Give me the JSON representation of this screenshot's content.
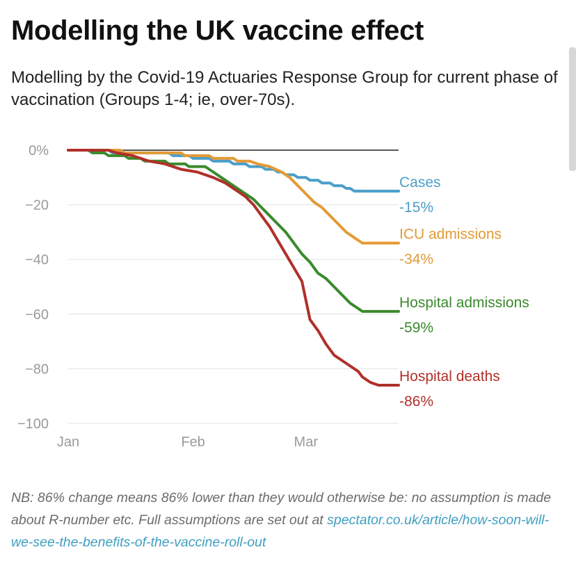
{
  "title": "Modelling the UK vaccine effect",
  "subtitle": "Modelling by the Covid-19 Actuaries Response Group for current phase of vaccination (Groups 1-4; ie, over-70s).",
  "note": {
    "text": "NB: 86% change means 86% lower than they would otherwise be: no assumption is made about R-number etc. Full assumptions are set out at ",
    "link": "spectator.co.uk/article/how-soon-will-we-see-the-benefits-of-the-vaccine-roll-out"
  },
  "chart_data": {
    "type": "line",
    "title": "Modelling the UK vaccine effect",
    "xlabel": "",
    "ylabel": "",
    "ylim": [
      -100,
      0
    ],
    "xlim": [
      "2021-01-01",
      "2021-03-24"
    ],
    "x_ticks": [
      {
        "label": "Jan",
        "date": "2021-01-01"
      },
      {
        "label": "Feb",
        "date": "2021-02-01"
      },
      {
        "label": "Mar",
        "date": "2021-03-01"
      }
    ],
    "y_ticks": [
      {
        "label": "0%",
        "value": 0
      },
      {
        "label": "−20",
        "value": -20
      },
      {
        "label": "−40",
        "value": -40
      },
      {
        "label": "−60",
        "value": -60
      },
      {
        "label": "−80",
        "value": -80
      },
      {
        "label": "−100",
        "value": -100
      }
    ],
    "grid": true,
    "legend": "right-end-labels",
    "series": [
      {
        "name": "Cases",
        "end_label": "-15%",
        "color": "#4a9fc9",
        "points": [
          [
            "2021-01-01",
            0
          ],
          [
            "2021-01-11",
            0
          ],
          [
            "2021-01-12",
            -1
          ],
          [
            "2021-01-26",
            -1
          ],
          [
            "2021-01-27",
            -2
          ],
          [
            "2021-01-31",
            -2
          ],
          [
            "2021-02-01",
            -3
          ],
          [
            "2021-02-05",
            -3
          ],
          [
            "2021-02-06",
            -4
          ],
          [
            "2021-02-10",
            -4
          ],
          [
            "2021-02-11",
            -5
          ],
          [
            "2021-02-14",
            -5
          ],
          [
            "2021-02-15",
            -6
          ],
          [
            "2021-02-18",
            -6
          ],
          [
            "2021-02-19",
            -7
          ],
          [
            "2021-02-21",
            -7
          ],
          [
            "2021-02-22",
            -8
          ],
          [
            "2021-02-23",
            -8
          ],
          [
            "2021-02-24",
            -9
          ],
          [
            "2021-02-26",
            -9
          ],
          [
            "2021-02-27",
            -10
          ],
          [
            "2021-03-01",
            -10
          ],
          [
            "2021-03-02",
            -11
          ],
          [
            "2021-03-04",
            -11
          ],
          [
            "2021-03-05",
            -12
          ],
          [
            "2021-03-07",
            -12
          ],
          [
            "2021-03-08",
            -13
          ],
          [
            "2021-03-10",
            -13
          ],
          [
            "2021-03-11",
            -14
          ],
          [
            "2021-03-12",
            -14
          ],
          [
            "2021-03-13",
            -15
          ],
          [
            "2021-03-24",
            -15
          ]
        ]
      },
      {
        "name": "ICU  admissions",
        "end_label": "-34%",
        "color": "#e39a37",
        "points": [
          [
            "2021-01-01",
            0
          ],
          [
            "2021-01-14",
            0
          ],
          [
            "2021-01-15",
            -1
          ],
          [
            "2021-01-29",
            -1
          ],
          [
            "2021-01-30",
            -2
          ],
          [
            "2021-02-05",
            -2
          ],
          [
            "2021-02-06",
            -3
          ],
          [
            "2021-02-11",
            -3
          ],
          [
            "2021-02-12",
            -4
          ],
          [
            "2021-02-15",
            -4
          ],
          [
            "2021-02-17",
            -5
          ],
          [
            "2021-02-20",
            -6
          ],
          [
            "2021-02-23",
            -8
          ],
          [
            "2021-02-25",
            -10
          ],
          [
            "2021-02-27",
            -13
          ],
          [
            "2021-03-01",
            -16
          ],
          [
            "2021-03-03",
            -19
          ],
          [
            "2021-03-05",
            -21
          ],
          [
            "2021-03-07",
            -24
          ],
          [
            "2021-03-09",
            -27
          ],
          [
            "2021-03-11",
            -30
          ],
          [
            "2021-03-13",
            -32
          ],
          [
            "2021-03-15",
            -34
          ],
          [
            "2021-03-24",
            -34
          ]
        ]
      },
      {
        "name": "Hospital admissions",
        "end_label": "-59%",
        "color": "#3a8a2c",
        "points": [
          [
            "2021-01-01",
            0
          ],
          [
            "2021-01-06",
            0
          ],
          [
            "2021-01-07",
            -1
          ],
          [
            "2021-01-10",
            -1
          ],
          [
            "2021-01-11",
            -2
          ],
          [
            "2021-01-15",
            -2
          ],
          [
            "2021-01-16",
            -3
          ],
          [
            "2021-01-19",
            -3
          ],
          [
            "2021-01-20",
            -4
          ],
          [
            "2021-01-25",
            -4
          ],
          [
            "2021-01-26",
            -5
          ],
          [
            "2021-01-30",
            -5
          ],
          [
            "2021-01-31",
            -6
          ],
          [
            "2021-02-04",
            -6
          ],
          [
            "2021-02-06",
            -8
          ],
          [
            "2021-02-08",
            -10
          ],
          [
            "2021-02-10",
            -12
          ],
          [
            "2021-02-13",
            -15
          ],
          [
            "2021-02-16",
            -18
          ],
          [
            "2021-02-18",
            -21
          ],
          [
            "2021-02-20",
            -24
          ],
          [
            "2021-02-22",
            -27
          ],
          [
            "2021-02-24",
            -30
          ],
          [
            "2021-02-26",
            -34
          ],
          [
            "2021-02-28",
            -38
          ],
          [
            "2021-03-02",
            -41
          ],
          [
            "2021-03-04",
            -45
          ],
          [
            "2021-03-06",
            -47
          ],
          [
            "2021-03-08",
            -50
          ],
          [
            "2021-03-10",
            -53
          ],
          [
            "2021-03-12",
            -56
          ],
          [
            "2021-03-14",
            -58
          ],
          [
            "2021-03-15",
            -59
          ],
          [
            "2021-03-24",
            -59
          ]
        ]
      },
      {
        "name": "Hospital deaths",
        "end_label": "-86%",
        "color": "#b0302a",
        "points": [
          [
            "2021-01-01",
            0
          ],
          [
            "2021-01-11",
            0
          ],
          [
            "2021-01-13",
            -1
          ],
          [
            "2021-01-17",
            -2
          ],
          [
            "2021-01-21",
            -4
          ],
          [
            "2021-01-25",
            -5
          ],
          [
            "2021-01-29",
            -7
          ],
          [
            "2021-02-02",
            -8
          ],
          [
            "2021-02-06",
            -10
          ],
          [
            "2021-02-09",
            -12
          ],
          [
            "2021-02-12",
            -15
          ],
          [
            "2021-02-14",
            -17
          ],
          [
            "2021-02-16",
            -20
          ],
          [
            "2021-02-18",
            -24
          ],
          [
            "2021-02-20",
            -28
          ],
          [
            "2021-02-22",
            -33
          ],
          [
            "2021-02-24",
            -38
          ],
          [
            "2021-02-26",
            -43
          ],
          [
            "2021-02-28",
            -48
          ],
          [
            "2021-03-01",
            -55
          ],
          [
            "2021-03-02",
            -62
          ],
          [
            "2021-03-04",
            -66
          ],
          [
            "2021-03-06",
            -71
          ],
          [
            "2021-03-08",
            -75
          ],
          [
            "2021-03-10",
            -77
          ],
          [
            "2021-03-12",
            -79
          ],
          [
            "2021-03-14",
            -81
          ],
          [
            "2021-03-15",
            -83
          ],
          [
            "2021-03-17",
            -85
          ],
          [
            "2021-03-19",
            -86
          ],
          [
            "2021-03-24",
            -86
          ]
        ]
      }
    ]
  }
}
